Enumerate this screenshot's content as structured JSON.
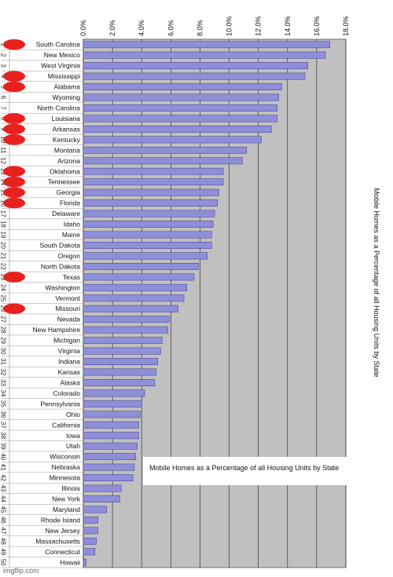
{
  "chart_data": {
    "type": "bar",
    "orientation": "horizontal",
    "title": "Mobile Homes as a Percentage of all Housing Units by State",
    "side_title": "Mobile Homes as a Percentage of all Housing Units by State",
    "xlim": [
      0,
      18
    ],
    "x_ticks": [
      "0.0%",
      "2.0%",
      "4.0%",
      "6.0%",
      "8.0%",
      "10.0%",
      "12.0%",
      "14.0%",
      "16.0%",
      "18.0%"
    ],
    "grid": true,
    "legend": "bottom-right",
    "bar_color": "#8f8fd9",
    "plot_bg": "#c0c0c0",
    "highlight_color": "#e8201e",
    "categories": [
      "South Carolina",
      "New Mexico",
      "West Virginia",
      "Mississippi",
      "Alabama",
      "Wyoming",
      "North Carolina",
      "Louisiana",
      "Arkansas",
      "Kentucky",
      "Montana",
      "Arizona",
      "Oklahoma",
      "Tennessee",
      "Georgia",
      "Florida",
      "Delaware",
      "Idaho",
      "Maine",
      "South Dakota",
      "Oregon",
      "North Dakota",
      "Texas",
      "Washington",
      "Vermont",
      "Missouri",
      "Nevada",
      "New Hampshire",
      "Michigan",
      "Virginia",
      "Indiana",
      "Kansas",
      "Alaska",
      "Colorado",
      "Pennsylvania",
      "Ohio",
      "California",
      "Iowa",
      "Utah",
      "Wisconsin",
      "Nebraska",
      "Minnesota",
      "Illinois",
      "New York",
      "Maryland",
      "Rhode Island",
      "New Jersey",
      "Massachusetts",
      "Connecticut",
      "Hawaii"
    ],
    "ranks": [
      "1",
      "2",
      "3",
      "4",
      "5",
      "6",
      "7",
      "8",
      "9",
      "10",
      "11",
      "12",
      "13",
      "14",
      "15",
      "16",
      "17",
      "18",
      "19",
      "20",
      "21",
      "22",
      "23",
      "24",
      "25",
      "26",
      "27",
      "28",
      "29",
      "30",
      "31",
      "32",
      "33",
      "34",
      "35",
      "36",
      "37",
      "38",
      "39",
      "40",
      "41",
      "42",
      "43",
      "44",
      "45",
      "46",
      "47",
      "48",
      "49",
      "50"
    ],
    "highlighted": [
      true,
      false,
      false,
      true,
      true,
      false,
      false,
      true,
      true,
      true,
      false,
      false,
      true,
      true,
      true,
      true,
      false,
      false,
      false,
      false,
      false,
      false,
      true,
      false,
      false,
      true,
      false,
      false,
      false,
      false,
      false,
      false,
      false,
      false,
      false,
      false,
      false,
      false,
      false,
      false,
      false,
      false,
      false,
      false,
      false,
      false,
      false,
      false,
      false,
      false
    ],
    "values": [
      16.9,
      16.6,
      15.4,
      15.2,
      13.6,
      13.4,
      13.3,
      13.3,
      12.9,
      12.2,
      11.2,
      10.9,
      9.6,
      9.6,
      9.3,
      9.2,
      9.0,
      8.9,
      8.8,
      8.8,
      8.5,
      7.9,
      7.6,
      7.1,
      6.9,
      6.5,
      5.9,
      5.8,
      5.4,
      5.3,
      5.1,
      5.0,
      4.9,
      4.2,
      4.0,
      3.9,
      3.8,
      3.8,
      3.7,
      3.6,
      3.5,
      3.4,
      2.6,
      2.5,
      1.6,
      1.0,
      1.0,
      0.9,
      0.8,
      0.2
    ]
  },
  "watermark": "imgflip.com"
}
